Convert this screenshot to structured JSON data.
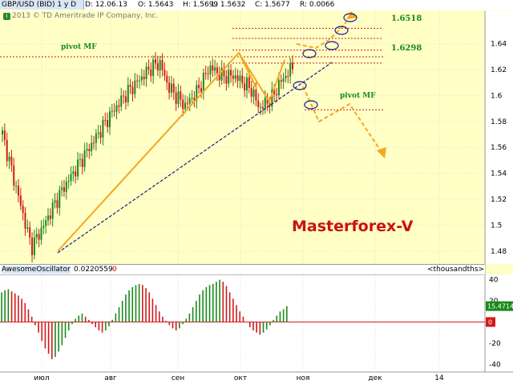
{
  "header": {
    "symbol": "GBP/USD (BID) 1 у D",
    "date": "D: 12.06.13",
    "open": "O: 1.5643",
    "high": "H: 1.5699",
    "low": "L: 1.5632",
    "close": "C: 1.5677",
    "range": "R: 0.0066",
    "copyright": "2013 © TD Ameritrade IP Company, Inc."
  },
  "annotations": {
    "pivot_left": "pivot MF",
    "pivot_right": "pivot MF",
    "level_high": "1.6518",
    "level_mid": "1.6298",
    "brand": "Masterforex-V"
  },
  "oscillator": {
    "name": "AwesomeOscillator",
    "value": "0.0220559",
    "zero_flag": "0",
    "units": "<thousandths>",
    "last_value": "15.4714",
    "zero_marker": "0"
  },
  "colors": {
    "up": "#1a8a1a",
    "down": "#d21a1a",
    "projection": "#f5a623",
    "trendline": "#1a1a8c",
    "levels": "#d21a1a",
    "background": "#ffffc6"
  },
  "chart_data": {
    "type": "candlestick",
    "price_axis": {
      "ticks": [
        "1.64",
        "1.62",
        "1.6",
        "1.58",
        "1.56",
        "1.54",
        "1.52",
        "1.5",
        "1.48"
      ],
      "ylim": [
        1.475,
        1.665
      ]
    },
    "osc_axis": {
      "ticks": [
        "40",
        "20",
        "0",
        "-20",
        "-40"
      ],
      "ylim": [
        -45,
        45
      ]
    },
    "x_labels": [
      "июл",
      "авг",
      "сен",
      "окт",
      "ноя",
      "дек",
      "14"
    ],
    "levels": [
      1.6518,
      1.644,
      1.635,
      1.6298,
      1.625,
      1.589
    ],
    "trendline": [
      [
        0.0,
        1.482
      ],
      [
        1.0,
        1.621
      ]
    ],
    "price_path": [
      [
        0.07,
        1.483
      ],
      [
        0.1,
        1.5
      ],
      [
        0.14,
        1.525
      ],
      [
        0.18,
        1.545
      ],
      [
        0.22,
        1.565
      ],
      [
        0.26,
        1.585
      ],
      [
        0.3,
        1.602
      ],
      [
        0.33,
        1.612
      ],
      [
        0.36,
        1.622
      ],
      [
        0.38,
        1.625
      ],
      [
        0.4,
        1.607
      ],
      [
        0.44,
        1.592
      ],
      [
        0.47,
        1.603
      ],
      [
        0.5,
        1.622
      ],
      [
        0.53,
        1.615
      ],
      [
        0.56,
        1.615
      ],
      [
        0.6,
        1.605
      ],
      [
        0.62,
        1.59
      ],
      [
        0.65,
        1.598
      ],
      [
        0.67,
        1.61
      ],
      [
        0.7,
        1.622
      ]
    ],
    "zigzag": [
      [
        1.483,
        "jul"
      ],
      [
        1.627,
        "oct"
      ],
      [
        1.59,
        "oct2"
      ],
      [
        1.625,
        "oct3"
      ]
    ],
    "oscillator_values": [
      28,
      30,
      31,
      29,
      27,
      25,
      22,
      18,
      12,
      5,
      -3,
      -10,
      -18,
      -25,
      -30,
      -35,
      -33,
      -28,
      -22,
      -15,
      -8,
      -2,
      3,
      6,
      8,
      5,
      2,
      -2,
      -5,
      -8,
      -10,
      -8,
      -4,
      2,
      8,
      14,
      20,
      26,
      30,
      33,
      35,
      36,
      35,
      32,
      28,
      22,
      16,
      10,
      5,
      1,
      -3,
      -6,
      -8,
      -6,
      -2,
      3,
      8,
      14,
      20,
      26,
      30,
      33,
      35,
      36,
      38,
      40,
      38,
      34,
      28,
      22,
      16,
      10,
      5,
      0,
      -5,
      -8,
      -10,
      -12,
      -10,
      -7,
      -3,
      2,
      6,
      10,
      12,
      15
    ]
  }
}
